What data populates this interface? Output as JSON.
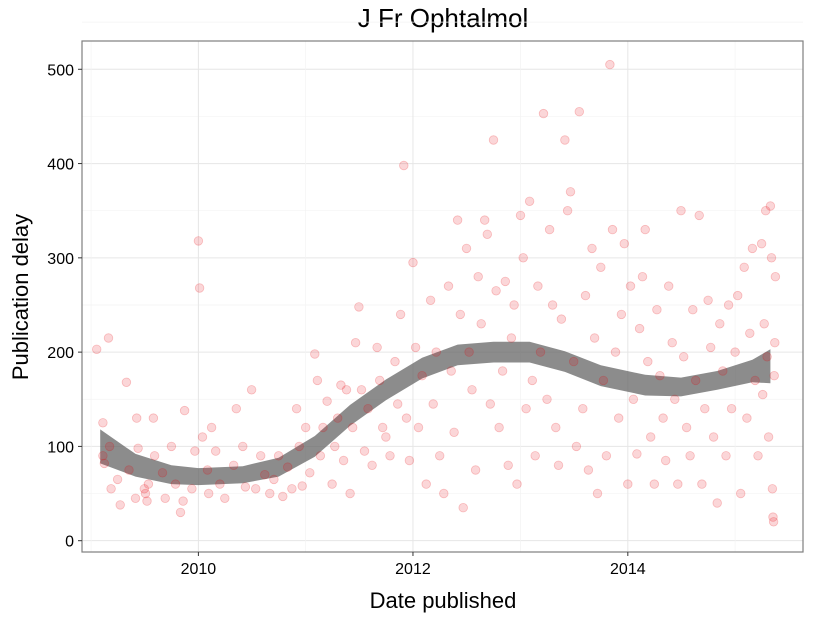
{
  "chart_data": {
    "type": "scatter",
    "title": "J Fr Ophtalmol",
    "xlabel": "Date published",
    "ylabel": "Publication delay",
    "x_axis": {
      "type": "date",
      "range": [
        "2008-12-01",
        "2015-08-20"
      ],
      "ticks": [
        {
          "date": "2010-01-01",
          "label": "2010"
        },
        {
          "date": "2012-01-01",
          "label": "2012"
        },
        {
          "date": "2014-01-01",
          "label": "2014"
        }
      ]
    },
    "y_axis": {
      "range": [
        -12,
        530
      ],
      "ticks": [
        0,
        100,
        200,
        300,
        400,
        500
      ]
    },
    "grid": true,
    "point_color": "#e8000b",
    "smooth_band_color": "#666666",
    "smooth_band": {
      "dates": [
        "2009-02-01",
        "2009-06-01",
        "2009-10-01",
        "2010-01-01",
        "2010-06-01",
        "2010-10-01",
        "2011-02-01",
        "2011-06-01",
        "2011-10-01",
        "2012-02-01",
        "2012-06-01",
        "2012-10-01",
        "2013-02-01",
        "2013-06-01",
        "2013-10-01",
        "2014-03-01",
        "2014-07-01",
        "2014-11-01",
        "2015-03-01",
        "2015-05-01"
      ],
      "center": [
        100,
        80,
        70,
        68,
        70,
        78,
        100,
        133,
        160,
        183,
        197,
        200,
        200,
        190,
        175,
        165,
        163,
        170,
        180,
        185
      ],
      "half_width": [
        18,
        12,
        10,
        9,
        9,
        10,
        11,
        11,
        11,
        11,
        11,
        11,
        11,
        11,
        11,
        11,
        10,
        10,
        12,
        18
      ]
    },
    "points": [
      {
        "x": "2009-01-20",
        "y": 203
      },
      {
        "x": "2009-02-10",
        "y": 125
      },
      {
        "x": "2009-02-10",
        "y": 90
      },
      {
        "x": "2009-02-15",
        "y": 82
      },
      {
        "x": "2009-03-01",
        "y": 215
      },
      {
        "x": "2009-03-05",
        "y": 100
      },
      {
        "x": "2009-03-10",
        "y": 55
      },
      {
        "x": "2009-04-01",
        "y": 65
      },
      {
        "x": "2009-04-10",
        "y": 38
      },
      {
        "x": "2009-05-01",
        "y": 168
      },
      {
        "x": "2009-05-10",
        "y": 75
      },
      {
        "x": "2009-06-01",
        "y": 45
      },
      {
        "x": "2009-06-05",
        "y": 130
      },
      {
        "x": "2009-06-10",
        "y": 98
      },
      {
        "x": "2009-07-01",
        "y": 55
      },
      {
        "x": "2009-07-05",
        "y": 50
      },
      {
        "x": "2009-07-10",
        "y": 42
      },
      {
        "x": "2009-07-15",
        "y": 60
      },
      {
        "x": "2009-08-01",
        "y": 130
      },
      {
        "x": "2009-08-05",
        "y": 90
      },
      {
        "x": "2009-09-01",
        "y": 72
      },
      {
        "x": "2009-09-10",
        "y": 45
      },
      {
        "x": "2009-10-01",
        "y": 100
      },
      {
        "x": "2009-10-15",
        "y": 60
      },
      {
        "x": "2009-11-01",
        "y": 30
      },
      {
        "x": "2009-11-10",
        "y": 42
      },
      {
        "x": "2009-11-15",
        "y": 138
      },
      {
        "x": "2009-12-10",
        "y": 55
      },
      {
        "x": "2009-12-20",
        "y": 95
      },
      {
        "x": "2010-01-01",
        "y": 318
      },
      {
        "x": "2010-01-05",
        "y": 268
      },
      {
        "x": "2010-01-15",
        "y": 110
      },
      {
        "x": "2010-02-01",
        "y": 75
      },
      {
        "x": "2010-02-05",
        "y": 50
      },
      {
        "x": "2010-02-15",
        "y": 120
      },
      {
        "x": "2010-03-01",
        "y": 95
      },
      {
        "x": "2010-03-15",
        "y": 60
      },
      {
        "x": "2010-04-01",
        "y": 45
      },
      {
        "x": "2010-05-01",
        "y": 80
      },
      {
        "x": "2010-05-10",
        "y": 140
      },
      {
        "x": "2010-06-01",
        "y": 100
      },
      {
        "x": "2010-06-10",
        "y": 57
      },
      {
        "x": "2010-07-01",
        "y": 160
      },
      {
        "x": "2010-07-15",
        "y": 55
      },
      {
        "x": "2010-08-01",
        "y": 90
      },
      {
        "x": "2010-08-15",
        "y": 70
      },
      {
        "x": "2010-09-01",
        "y": 50
      },
      {
        "x": "2010-09-15",
        "y": 65
      },
      {
        "x": "2010-10-01",
        "y": 90
      },
      {
        "x": "2010-10-15",
        "y": 47
      },
      {
        "x": "2010-11-01",
        "y": 78
      },
      {
        "x": "2010-11-15",
        "y": 55
      },
      {
        "x": "2010-12-01",
        "y": 140
      },
      {
        "x": "2010-12-10",
        "y": 100
      },
      {
        "x": "2010-12-20",
        "y": 58
      },
      {
        "x": "2011-01-01",
        "y": 120
      },
      {
        "x": "2011-01-15",
        "y": 72
      },
      {
        "x": "2011-02-01",
        "y": 198
      },
      {
        "x": "2011-02-10",
        "y": 170
      },
      {
        "x": "2011-02-20",
        "y": 90
      },
      {
        "x": "2011-03-01",
        "y": 120
      },
      {
        "x": "2011-03-15",
        "y": 148
      },
      {
        "x": "2011-04-01",
        "y": 60
      },
      {
        "x": "2011-04-10",
        "y": 100
      },
      {
        "x": "2011-04-20",
        "y": 130
      },
      {
        "x": "2011-05-01",
        "y": 165
      },
      {
        "x": "2011-05-10",
        "y": 85
      },
      {
        "x": "2011-05-20",
        "y": 160
      },
      {
        "x": "2011-06-01",
        "y": 50
      },
      {
        "x": "2011-06-10",
        "y": 120
      },
      {
        "x": "2011-06-20",
        "y": 210
      },
      {
        "x": "2011-07-01",
        "y": 248
      },
      {
        "x": "2011-07-10",
        "y": 160
      },
      {
        "x": "2011-07-20",
        "y": 95
      },
      {
        "x": "2011-08-01",
        "y": 140
      },
      {
        "x": "2011-08-15",
        "y": 80
      },
      {
        "x": "2011-09-01",
        "y": 205
      },
      {
        "x": "2011-09-10",
        "y": 170
      },
      {
        "x": "2011-09-20",
        "y": 120
      },
      {
        "x": "2011-10-01",
        "y": 110
      },
      {
        "x": "2011-10-15",
        "y": 90
      },
      {
        "x": "2011-11-01",
        "y": 190
      },
      {
        "x": "2011-11-10",
        "y": 145
      },
      {
        "x": "2011-11-20",
        "y": 240
      },
      {
        "x": "2011-12-01",
        "y": 398
      },
      {
        "x": "2011-12-10",
        "y": 130
      },
      {
        "x": "2011-12-20",
        "y": 85
      },
      {
        "x": "2012-01-01",
        "y": 295
      },
      {
        "x": "2012-01-10",
        "y": 205
      },
      {
        "x": "2012-01-20",
        "y": 120
      },
      {
        "x": "2012-02-01",
        "y": 175
      },
      {
        "x": "2012-02-15",
        "y": 60
      },
      {
        "x": "2012-03-01",
        "y": 255
      },
      {
        "x": "2012-03-10",
        "y": 145
      },
      {
        "x": "2012-03-20",
        "y": 200
      },
      {
        "x": "2012-04-01",
        "y": 90
      },
      {
        "x": "2012-04-15",
        "y": 50
      },
      {
        "x": "2012-05-01",
        "y": 270
      },
      {
        "x": "2012-05-10",
        "y": 180
      },
      {
        "x": "2012-05-20",
        "y": 115
      },
      {
        "x": "2012-06-01",
        "y": 340
      },
      {
        "x": "2012-06-10",
        "y": 240
      },
      {
        "x": "2012-06-20",
        "y": 35
      },
      {
        "x": "2012-07-01",
        "y": 310
      },
      {
        "x": "2012-07-10",
        "y": 200
      },
      {
        "x": "2012-07-20",
        "y": 160
      },
      {
        "x": "2012-08-01",
        "y": 75
      },
      {
        "x": "2012-08-10",
        "y": 280
      },
      {
        "x": "2012-08-20",
        "y": 230
      },
      {
        "x": "2012-09-01",
        "y": 340
      },
      {
        "x": "2012-09-10",
        "y": 325
      },
      {
        "x": "2012-09-20",
        "y": 145
      },
      {
        "x": "2012-10-01",
        "y": 425
      },
      {
        "x": "2012-10-10",
        "y": 265
      },
      {
        "x": "2012-10-20",
        "y": 120
      },
      {
        "x": "2012-11-01",
        "y": 180
      },
      {
        "x": "2012-11-10",
        "y": 275
      },
      {
        "x": "2012-11-20",
        "y": 80
      },
      {
        "x": "2012-12-01",
        "y": 215
      },
      {
        "x": "2012-12-10",
        "y": 250
      },
      {
        "x": "2012-12-20",
        "y": 60
      },
      {
        "x": "2013-01-01",
        "y": 345
      },
      {
        "x": "2013-01-10",
        "y": 300
      },
      {
        "x": "2013-01-20",
        "y": 140
      },
      {
        "x": "2013-02-01",
        "y": 360
      },
      {
        "x": "2013-02-10",
        "y": 170
      },
      {
        "x": "2013-02-20",
        "y": 90
      },
      {
        "x": "2013-03-01",
        "y": 270
      },
      {
        "x": "2013-03-10",
        "y": 200
      },
      {
        "x": "2013-03-20",
        "y": 453
      },
      {
        "x": "2013-04-01",
        "y": 150
      },
      {
        "x": "2013-04-10",
        "y": 330
      },
      {
        "x": "2013-04-20",
        "y": 250
      },
      {
        "x": "2013-05-01",
        "y": 120
      },
      {
        "x": "2013-05-10",
        "y": 80
      },
      {
        "x": "2013-05-20",
        "y": 235
      },
      {
        "x": "2013-06-01",
        "y": 425
      },
      {
        "x": "2013-06-10",
        "y": 350
      },
      {
        "x": "2013-06-20",
        "y": 370
      },
      {
        "x": "2013-07-01",
        "y": 190
      },
      {
        "x": "2013-07-10",
        "y": 100
      },
      {
        "x": "2013-07-20",
        "y": 455
      },
      {
        "x": "2013-08-01",
        "y": 140
      },
      {
        "x": "2013-08-10",
        "y": 260
      },
      {
        "x": "2013-08-20",
        "y": 75
      },
      {
        "x": "2013-09-01",
        "y": 310
      },
      {
        "x": "2013-09-10",
        "y": 215
      },
      {
        "x": "2013-09-20",
        "y": 50
      },
      {
        "x": "2013-10-01",
        "y": 290
      },
      {
        "x": "2013-10-10",
        "y": 170
      },
      {
        "x": "2013-10-20",
        "y": 90
      },
      {
        "x": "2013-11-01",
        "y": 505
      },
      {
        "x": "2013-11-10",
        "y": 330
      },
      {
        "x": "2013-11-20",
        "y": 200
      },
      {
        "x": "2013-12-01",
        "y": 130
      },
      {
        "x": "2013-12-10",
        "y": 240
      },
      {
        "x": "2013-12-20",
        "y": 315
      },
      {
        "x": "2014-01-01",
        "y": 60
      },
      {
        "x": "2014-01-10",
        "y": 270
      },
      {
        "x": "2014-01-20",
        "y": 150
      },
      {
        "x": "2014-02-01",
        "y": 92
      },
      {
        "x": "2014-02-10",
        "y": 225
      },
      {
        "x": "2014-02-20",
        "y": 280
      },
      {
        "x": "2014-03-01",
        "y": 330
      },
      {
        "x": "2014-03-10",
        "y": 190
      },
      {
        "x": "2014-03-20",
        "y": 110
      },
      {
        "x": "2014-04-01",
        "y": 60
      },
      {
        "x": "2014-04-10",
        "y": 245
      },
      {
        "x": "2014-04-20",
        "y": 175
      },
      {
        "x": "2014-05-01",
        "y": 130
      },
      {
        "x": "2014-05-10",
        "y": 85
      },
      {
        "x": "2014-05-20",
        "y": 270
      },
      {
        "x": "2014-06-01",
        "y": 210
      },
      {
        "x": "2014-06-10",
        "y": 150
      },
      {
        "x": "2014-06-20",
        "y": 60
      },
      {
        "x": "2014-07-01",
        "y": 350
      },
      {
        "x": "2014-07-10",
        "y": 195
      },
      {
        "x": "2014-07-20",
        "y": 120
      },
      {
        "x": "2014-08-01",
        "y": 90
      },
      {
        "x": "2014-08-10",
        "y": 245
      },
      {
        "x": "2014-08-20",
        "y": 170
      },
      {
        "x": "2014-09-01",
        "y": 345
      },
      {
        "x": "2014-09-10",
        "y": 60
      },
      {
        "x": "2014-09-20",
        "y": 140
      },
      {
        "x": "2014-10-01",
        "y": 255
      },
      {
        "x": "2014-10-10",
        "y": 205
      },
      {
        "x": "2014-10-20",
        "y": 110
      },
      {
        "x": "2014-11-01",
        "y": 40
      },
      {
        "x": "2014-11-10",
        "y": 230
      },
      {
        "x": "2014-11-20",
        "y": 180
      },
      {
        "x": "2014-12-01",
        "y": 90
      },
      {
        "x": "2014-12-10",
        "y": 250
      },
      {
        "x": "2014-12-20",
        "y": 140
      },
      {
        "x": "2015-01-01",
        "y": 200
      },
      {
        "x": "2015-01-10",
        "y": 260
      },
      {
        "x": "2015-01-20",
        "y": 50
      },
      {
        "x": "2015-02-01",
        "y": 290
      },
      {
        "x": "2015-02-10",
        "y": 130
      },
      {
        "x": "2015-02-20",
        "y": 220
      },
      {
        "x": "2015-03-01",
        "y": 310
      },
      {
        "x": "2015-03-10",
        "y": 170
      },
      {
        "x": "2015-03-20",
        "y": 90
      },
      {
        "x": "2015-04-01",
        "y": 315
      },
      {
        "x": "2015-04-05",
        "y": 155
      },
      {
        "x": "2015-04-10",
        "y": 230
      },
      {
        "x": "2015-04-15",
        "y": 350
      },
      {
        "x": "2015-04-20",
        "y": 195
      },
      {
        "x": "2015-04-25",
        "y": 110
      },
      {
        "x": "2015-05-01",
        "y": 355
      },
      {
        "x": "2015-05-05",
        "y": 300
      },
      {
        "x": "2015-05-08",
        "y": 55
      },
      {
        "x": "2015-05-10",
        "y": 25
      },
      {
        "x": "2015-05-12",
        "y": 20
      },
      {
        "x": "2015-05-14",
        "y": 175
      },
      {
        "x": "2015-05-16",
        "y": 210
      },
      {
        "x": "2015-05-18",
        "y": 280
      }
    ]
  }
}
